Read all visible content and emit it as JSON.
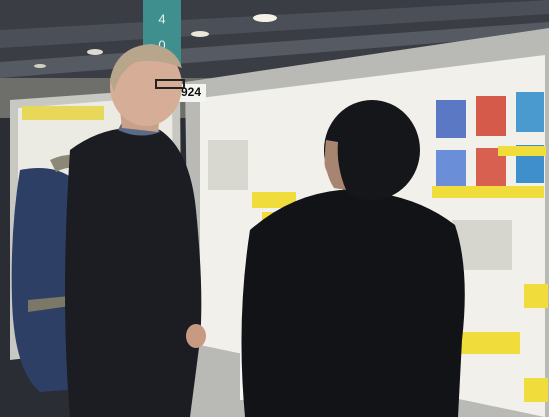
{
  "image": {
    "sign": [
      "4",
      "0"
    ],
    "board_number": "924"
  }
}
